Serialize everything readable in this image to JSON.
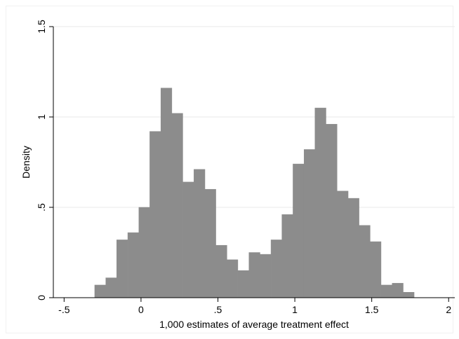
{
  "chart_data": {
    "type": "bar",
    "title": "",
    "xlabel": "1,000 estimates of average treatment effect",
    "ylabel": "Density",
    "xlim": [
      -0.57,
      2.04
    ],
    "ylim": [
      0,
      1.5
    ],
    "x_ticks": [
      {
        "value": -0.5,
        "label": "-.5"
      },
      {
        "value": 0,
        "label": "0"
      },
      {
        "value": 0.5,
        "label": ".5"
      },
      {
        "value": 1,
        "label": "1"
      },
      {
        "value": 1.5,
        "label": "1.5"
      },
      {
        "value": 2,
        "label": "2"
      }
    ],
    "y_ticks": [
      {
        "value": 0,
        "label": "0"
      },
      {
        "value": 0.5,
        "label": ".5"
      },
      {
        "value": 1,
        "label": "1"
      },
      {
        "value": 1.5,
        "label": "1.5"
      }
    ],
    "grid": true,
    "bar_color": "#8c8c8c",
    "bin_width": 0.0716,
    "bins": [
      {
        "x0": -0.301,
        "value": 0.07
      },
      {
        "x0": -0.229,
        "value": 0.11
      },
      {
        "x0": -0.158,
        "value": 0.32
      },
      {
        "x0": -0.086,
        "value": 0.36
      },
      {
        "x0": -0.014,
        "value": 0.5
      },
      {
        "x0": 0.057,
        "value": 0.92
      },
      {
        "x0": 0.129,
        "value": 1.16
      },
      {
        "x0": 0.2,
        "value": 1.02
      },
      {
        "x0": 0.272,
        "value": 0.64
      },
      {
        "x0": 0.344,
        "value": 0.71
      },
      {
        "x0": 0.415,
        "value": 0.6
      },
      {
        "x0": 0.487,
        "value": 0.29
      },
      {
        "x0": 0.558,
        "value": 0.21
      },
      {
        "x0": 0.63,
        "value": 0.15
      },
      {
        "x0": 0.702,
        "value": 0.25
      },
      {
        "x0": 0.773,
        "value": 0.24
      },
      {
        "x0": 0.845,
        "value": 0.32
      },
      {
        "x0": 0.916,
        "value": 0.46
      },
      {
        "x0": 0.988,
        "value": 0.74
      },
      {
        "x0": 1.06,
        "value": 0.82
      },
      {
        "x0": 1.131,
        "value": 1.05
      },
      {
        "x0": 1.203,
        "value": 0.96
      },
      {
        "x0": 1.275,
        "value": 0.59
      },
      {
        "x0": 1.346,
        "value": 0.55
      },
      {
        "x0": 1.418,
        "value": 0.4
      },
      {
        "x0": 1.489,
        "value": 0.31
      },
      {
        "x0": 1.561,
        "value": 0.07
      },
      {
        "x0": 1.633,
        "value": 0.08
      },
      {
        "x0": 1.704,
        "value": 0.03
      }
    ]
  }
}
